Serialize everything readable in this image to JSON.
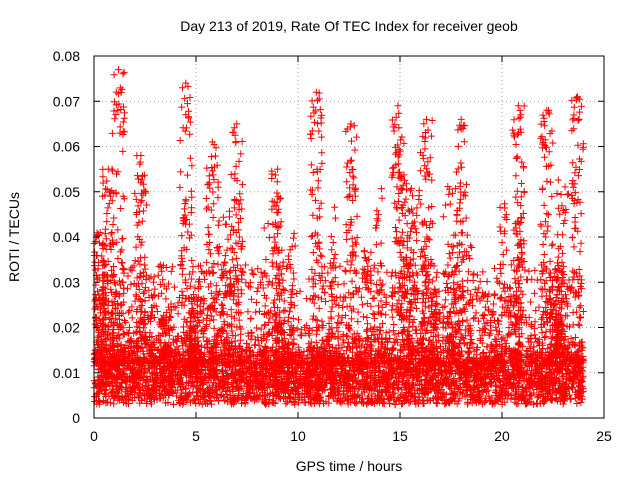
{
  "chart_data": {
    "type": "scatter",
    "title": "Day 213 of 2019, Rate Of TEC Index for receiver geob",
    "xlabel": "GPS time / hours",
    "ylabel": "ROTI / TECUs",
    "xlim": [
      0,
      25
    ],
    "ylim": [
      0,
      0.08
    ],
    "x_ticks": [
      0,
      5,
      10,
      15,
      20,
      25
    ],
    "x_tick_labels": [
      "0",
      "5",
      "10",
      "15",
      "20",
      "25"
    ],
    "y_ticks": [
      0,
      0.01,
      0.02,
      0.03,
      0.04,
      0.05,
      0.06,
      0.07,
      0.08
    ],
    "y_tick_labels": [
      "0",
      "0.01",
      "0.02",
      "0.03",
      "0.04",
      "0.05",
      "0.06",
      "0.07",
      "0.08"
    ],
    "grid": true,
    "marker": "+",
    "series_color": "#ff0000",
    "series": [
      {
        "name": "ROTI",
        "x_range": [
          0,
          24
        ],
        "baseline_range": [
          0.003,
          0.02
        ],
        "typical_value": 0.009,
        "notable_peaks": [
          {
            "x": 0.3,
            "y": 0.041
          },
          {
            "x": 0.7,
            "y": 0.055
          },
          {
            "x": 1.2,
            "y": 0.077
          },
          {
            "x": 2.3,
            "y": 0.058
          },
          {
            "x": 4.5,
            "y": 0.074
          },
          {
            "x": 5.8,
            "y": 0.061
          },
          {
            "x": 7.0,
            "y": 0.065
          },
          {
            "x": 9.0,
            "y": 0.055
          },
          {
            "x": 10.9,
            "y": 0.072
          },
          {
            "x": 12.6,
            "y": 0.065
          },
          {
            "x": 14.9,
            "y": 0.069
          },
          {
            "x": 16.3,
            "y": 0.066
          },
          {
            "x": 18.0,
            "y": 0.066
          },
          {
            "x": 20.8,
            "y": 0.069
          },
          {
            "x": 22.2,
            "y": 0.068
          },
          {
            "x": 23.7,
            "y": 0.071
          }
        ]
      }
    ]
  }
}
